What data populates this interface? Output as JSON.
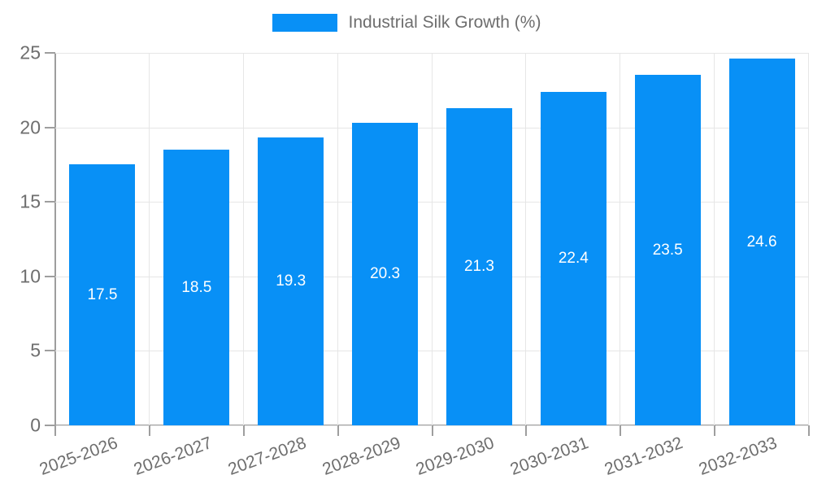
{
  "legend": {
    "label": "Industrial Silk Growth (%)"
  },
  "chart_data": {
    "type": "bar",
    "title": "",
    "categories": [
      "2025-2026",
      "2026-2027",
      "2027-2028",
      "2028-2029",
      "2029-2030",
      "2030-2031",
      "2031-2032",
      "2032-2033"
    ],
    "values": [
      17.5,
      18.5,
      19.3,
      20.3,
      21.3,
      22.4,
      23.5,
      24.6
    ],
    "series_name": "Industrial Silk Growth (%)",
    "xlabel": "",
    "ylabel": "",
    "ylim": [
      0,
      25
    ],
    "yticks": [
      0,
      5,
      10,
      15,
      20,
      25
    ],
    "grid": true,
    "legend_position": "top-center",
    "bar_labels_inside": true,
    "x_label_rotation_deg": -20,
    "colors": {
      "bar": "#0890f6",
      "bar_label": "#ffffff",
      "axis": "#9e9e9e",
      "grid": "#e6e6e6",
      "tick_text": "#6e6e6e",
      "background": "#ffffff"
    }
  }
}
